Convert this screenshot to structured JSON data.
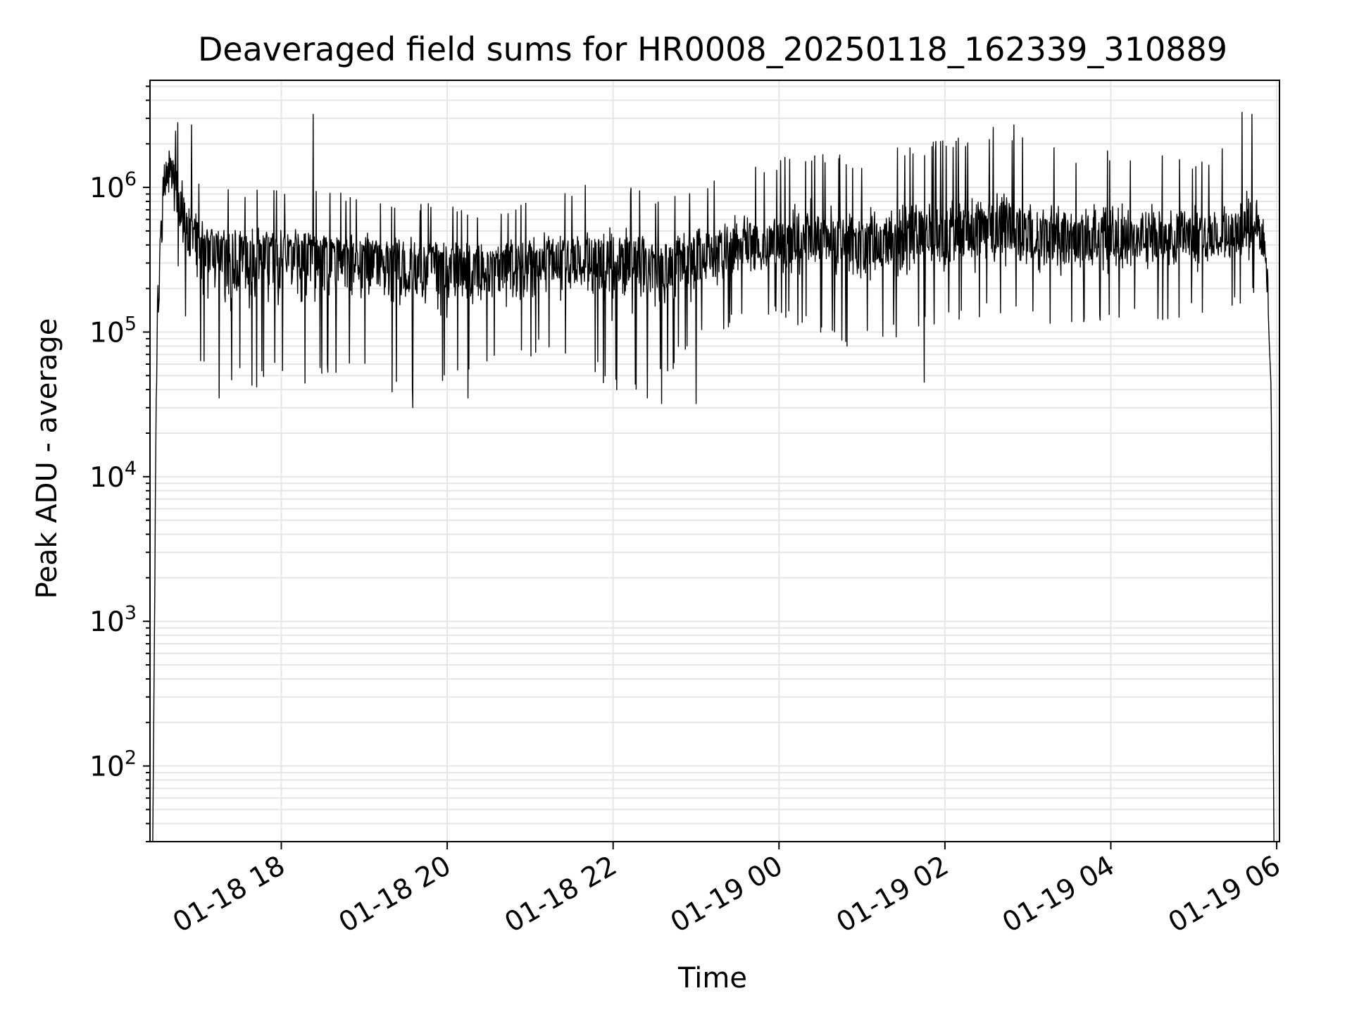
{
  "chart_data": {
    "type": "line",
    "title": "Deaveraged field sums for HR0008_20250118_162339_310889",
    "xlabel": "Time",
    "ylabel": "Peak ADU - average",
    "y_scale": "log",
    "xlim": [
      "2025-01-18 16:25",
      "2025-01-19 06:02"
    ],
    "ylim": [
      30,
      5500000
    ],
    "grid": true,
    "line_color": "#000000",
    "grid_color": "#e6e6e6",
    "x_tick_labels": [
      "01-18 18",
      "01-18 20",
      "01-18 22",
      "01-19 00",
      "01-19 02",
      "01-19 04",
      "01-19 06"
    ],
    "y_tick_labels": [
      {
        "base": "10",
        "exp": "2"
      },
      {
        "base": "10",
        "exp": "3"
      },
      {
        "base": "10",
        "exp": "4"
      },
      {
        "base": "10",
        "exp": "5"
      },
      {
        "base": "10",
        "exp": "6"
      }
    ],
    "series": [
      {
        "x": [
          "2025-01-18 16:27",
          "2025-01-18 16:30",
          "2025-01-18 16:35",
          "2025-01-18 16:40",
          "2025-01-18 16:50",
          "2025-01-18 17:00",
          "2025-01-18 17:30",
          "2025-01-18 18:00",
          "2025-01-18 18:30",
          "2025-01-18 19:00",
          "2025-01-18 19:30",
          "2025-01-18 20:00",
          "2025-01-18 20:30",
          "2025-01-18 21:00",
          "2025-01-18 21:30",
          "2025-01-18 22:00",
          "2025-01-18 22:30",
          "2025-01-18 23:00",
          "2025-01-18 23:30",
          "2025-01-19 00:00",
          "2025-01-19 00:30",
          "2025-01-19 01:00",
          "2025-01-19 01:30",
          "2025-01-19 02:00",
          "2025-01-19 02:30",
          "2025-01-19 03:00",
          "2025-01-19 03:30",
          "2025-01-19 04:00",
          "2025-01-19 04:30",
          "2025-01-19 05:00",
          "2025-01-19 05:30",
          "2025-01-19 05:45",
          "2025-01-19 05:52",
          "2025-01-19 05:56",
          "2025-01-19 05:58"
        ],
        "y": [
          30,
          100000,
          1200000,
          1500000,
          600000,
          400000,
          380000,
          360000,
          340000,
          330000,
          320000,
          310000,
          300000,
          320000,
          340000,
          360000,
          300000,
          330000,
          380000,
          420000,
          450000,
          400000,
          430000,
          460000,
          520000,
          480000,
          430000,
          460000,
          470000,
          450000,
          500000,
          600000,
          350000,
          40000,
          30
        ],
        "spread_low": [
          1,
          0.1,
          0.3,
          0.3,
          0.2,
          0.12,
          0.1,
          0.12,
          0.12,
          0.14,
          0.1,
          0.12,
          0.16,
          0.2,
          0.2,
          0.1,
          0.1,
          0.25,
          0.3,
          0.3,
          0.2,
          0.18,
          0.2,
          0.22,
          0.25,
          0.25,
          0.25,
          0.25,
          0.25,
          0.28,
          0.3,
          0.3,
          0.5,
          1,
          1
        ],
        "spread_high": [
          1,
          5,
          2.2,
          2,
          3,
          3,
          2.5,
          2.8,
          3,
          2.5,
          2.5,
          2.5,
          2.2,
          2.5,
          3,
          3,
          3,
          3.2,
          3.5,
          3.8,
          4,
          4,
          4.5,
          4.8,
          5,
          4.5,
          4.2,
          4,
          3.8,
          3.5,
          4,
          5,
          2,
          1,
          1
        ],
        "peaks": [
          [
            "2025-01-18 16:45",
            2800000
          ],
          [
            "2025-01-18 16:55",
            2700000
          ],
          [
            "2025-01-18 18:23",
            3200000
          ],
          [
            "2025-01-18 17:15",
            35000
          ],
          [
            "2025-01-18 19:35",
            30000
          ],
          [
            "2025-01-18 20:15",
            35000
          ],
          [
            "2025-01-18 22:35",
            32000
          ],
          [
            "2025-01-18 23:00",
            32000
          ],
          [
            "2025-01-19 01:45",
            45000
          ],
          [
            "2025-01-19 02:35",
            2600000
          ],
          [
            "2025-01-19 02:50",
            2700000
          ],
          [
            "2025-01-19 05:35",
            3300000
          ],
          [
            "2025-01-19 05:42",
            3200000
          ]
        ]
      }
    ]
  }
}
